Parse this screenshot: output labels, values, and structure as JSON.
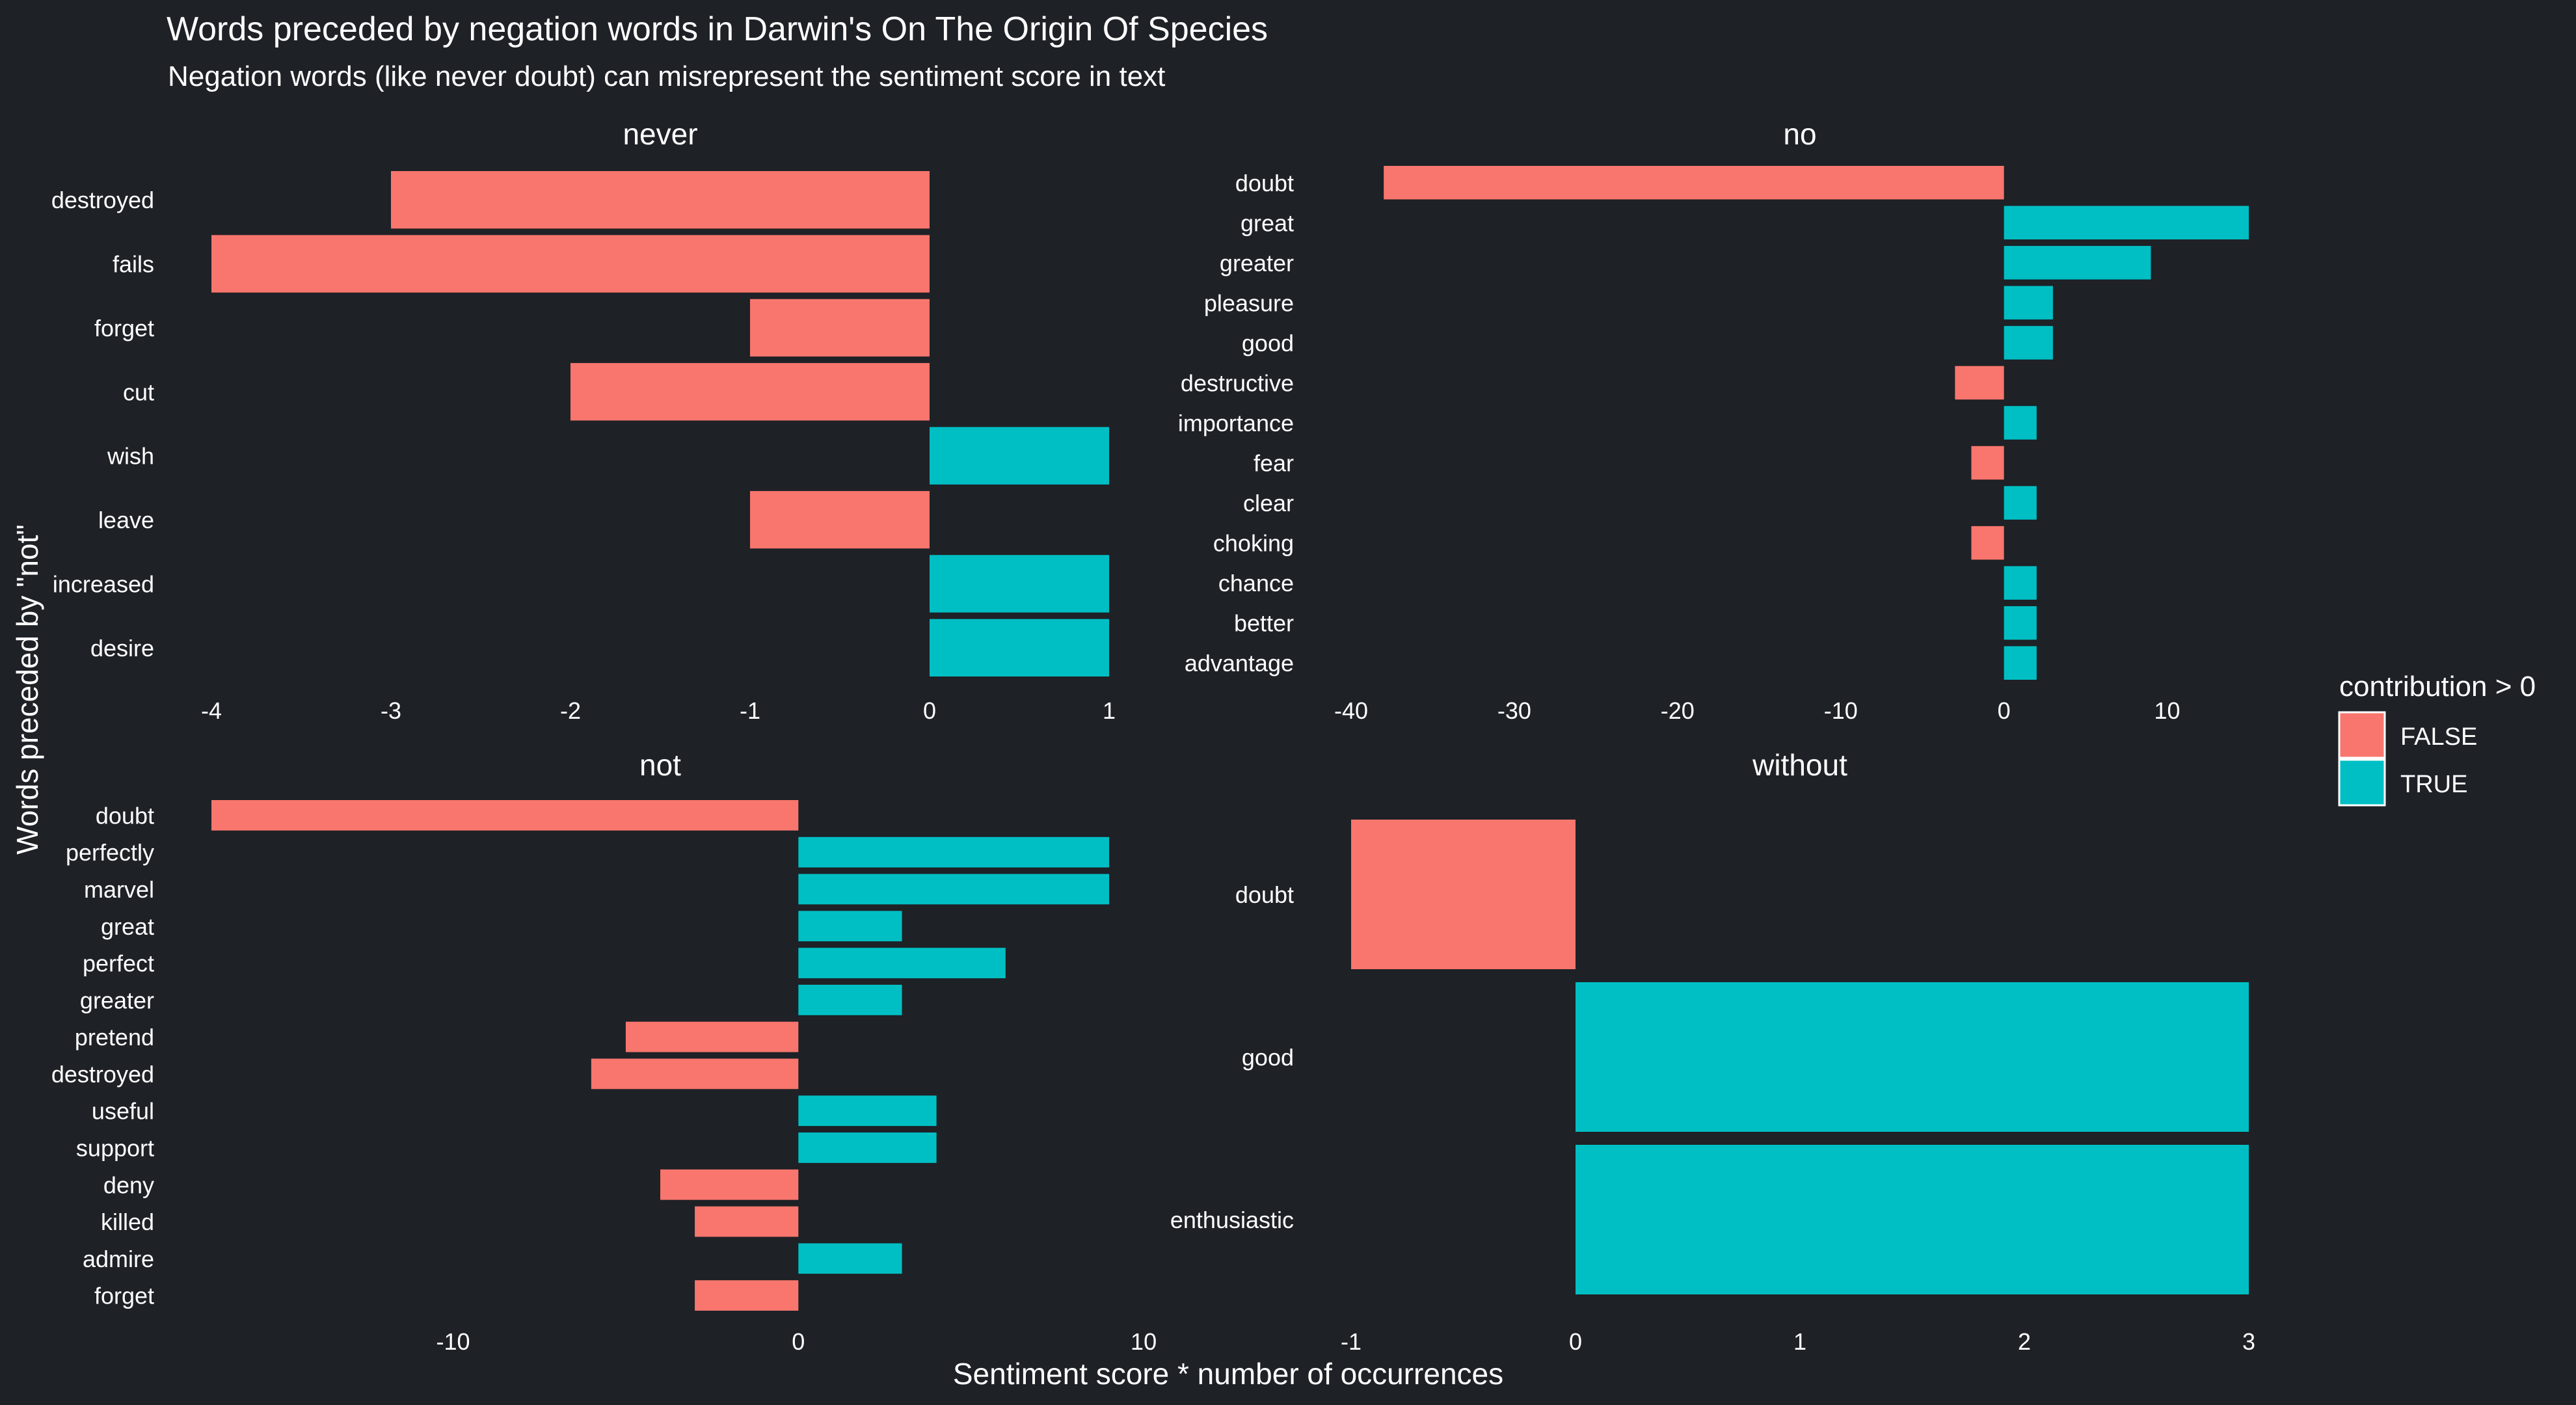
{
  "chart_data": {
    "type": "bar",
    "orientation": "horizontal",
    "title": "Words preceded by negation words in Darwin's On The Origin Of Species",
    "subtitle": "Negation words (like never doubt) can misrepresent the sentiment score in text",
    "xlabel": "Sentiment score * number of occurrences",
    "ylabel": "Words preceded by \"not\"",
    "grid": false,
    "legend": {
      "title": "contribution > 0",
      "position": "right",
      "entries": [
        {
          "label": "FALSE",
          "color": "#f8766d"
        },
        {
          "label": "TRUE",
          "color": "#00bfc4"
        }
      ]
    },
    "facets": [
      {
        "name": "never",
        "xlim": [
          -4,
          1
        ],
        "xticks": [
          -4,
          -3,
          -2,
          -1,
          0,
          1
        ],
        "categories": [
          "destroyed",
          "fails",
          "forget",
          "cut",
          "wish",
          "leave",
          "increased",
          "desire"
        ],
        "values": [
          -3,
          -4,
          -1,
          -2,
          1,
          -1,
          1,
          1
        ]
      },
      {
        "name": "no",
        "xlim": [
          -40,
          15
        ],
        "xticks": [
          -40,
          -30,
          -20,
          -10,
          0,
          10
        ],
        "categories": [
          "doubt",
          "great",
          "greater",
          "pleasure",
          "good",
          "destructive",
          "importance",
          "fear",
          "clear",
          "choking",
          "chance",
          "better",
          "advantage"
        ],
        "values": [
          -38,
          15,
          9,
          3,
          3,
          -3,
          2,
          -2,
          2,
          -2,
          2,
          2,
          2
        ]
      },
      {
        "name": "not",
        "xlim": [
          -17,
          9
        ],
        "xticks": [
          -10,
          0,
          10
        ],
        "categories": [
          "doubt",
          "perfectly",
          "marvel",
          "great",
          "perfect",
          "greater",
          "pretend",
          "destroyed",
          "useful",
          "support",
          "deny",
          "killed",
          "admire",
          "forget"
        ],
        "values": [
          -17,
          9,
          9,
          3,
          6,
          3,
          -5,
          -6,
          4,
          4,
          -4,
          -3,
          3,
          -3
        ]
      },
      {
        "name": "without",
        "xlim": [
          -1,
          3
        ],
        "xticks": [
          -1,
          0,
          1,
          2,
          3
        ],
        "categories": [
          "doubt",
          "good",
          "enthusiastic"
        ],
        "values": [
          -1,
          3,
          3
        ]
      }
    ]
  }
}
